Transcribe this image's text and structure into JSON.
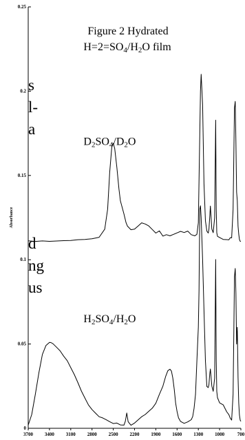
{
  "background_fragments": [
    {
      "id": "frag-1",
      "text": "s"
    },
    {
      "id": "frag-2",
      "text": "l-"
    },
    {
      "id": "frag-3",
      "text": "a"
    },
    {
      "id": "frag-4",
      "text": "d"
    },
    {
      "id": "frag-5",
      "text": "ng"
    },
    {
      "id": "frag-6",
      "text": "us"
    }
  ],
  "chart_data": {
    "type": "line",
    "title": "Figure 2  Hydrated",
    "subtitle_parts": [
      "H=2=SO",
      "4",
      "/H",
      "2",
      "O film"
    ],
    "xlabel": "",
    "ylabel": "Absorbance",
    "xlim": [
      3700,
      700
    ],
    "ylim": [
      0,
      0.25
    ],
    "x_ticks": [
      3700,
      3400,
      3100,
      2800,
      2500,
      2200,
      1900,
      1600,
      1300,
      1000,
      700
    ],
    "y_ticks": [
      0,
      0.05,
      0.1,
      0.15,
      0.2,
      0.25
    ],
    "y_tick_labels": [
      "0",
      "0.05",
      "0.1",
      "0.15",
      "0.2",
      "0.25"
    ],
    "annotations": [
      {
        "name": "d2so4-label",
        "parts": [
          "D",
          "2",
          "SO",
          "4",
          "/D",
          "2",
          "O"
        ],
        "x": 2550,
        "y": 0.168
      },
      {
        "name": "h2so4-label",
        "parts": [
          "H",
          "2",
          "SO",
          "4",
          "/H",
          "2",
          "O"
        ],
        "x": 2550,
        "y": 0.063
      }
    ],
    "series": [
      {
        "x": [
          3700,
          3600,
          3500,
          3400,
          3300,
          3200,
          3100,
          3000,
          2900,
          2800,
          2700,
          2620,
          2580,
          2550,
          2520,
          2500,
          2480,
          2450,
          2420,
          2400,
          2380,
          2350,
          2320,
          2300,
          2250,
          2200,
          2150,
          2100,
          2050,
          2000,
          1950,
          1900,
          1850,
          1800,
          1750,
          1700,
          1650,
          1600,
          1550,
          1500,
          1450,
          1400,
          1350,
          1320,
          1300,
          1280,
          1270,
          1260,
          1240,
          1220,
          1200,
          1180,
          1160,
          1150,
          1140,
          1130,
          1110,
          1090,
          1070,
          1055,
          1048,
          1040,
          1030,
          1000,
          950,
          900,
          870,
          850,
          830,
          810,
          800,
          790,
          780,
          770,
          760,
          750,
          740,
          730,
          720,
          710,
          700
        ],
        "y": [
          0.111,
          0.1108,
          0.1112,
          0.1111,
          0.111,
          0.1113,
          0.1115,
          0.1117,
          0.112,
          0.1125,
          0.1135,
          0.118,
          0.13,
          0.152,
          0.167,
          0.169,
          0.166,
          0.155,
          0.142,
          0.135,
          0.132,
          0.127,
          0.122,
          0.12,
          0.118,
          0.118,
          0.12,
          0.122,
          0.121,
          0.12,
          0.118,
          0.116,
          0.117,
          0.114,
          0.115,
          0.114,
          0.115,
          0.116,
          0.117,
          0.116,
          0.117,
          0.115,
          0.114,
          0.115,
          0.122,
          0.175,
          0.2,
          0.21,
          0.192,
          0.145,
          0.123,
          0.117,
          0.116,
          0.118,
          0.125,
          0.132,
          0.118,
          0.116,
          0.125,
          0.183,
          0.13,
          0.116,
          0.114,
          0.113,
          0.112,
          0.112,
          0.112,
          0.113,
          0.113,
          0.13,
          0.16,
          0.19,
          0.194,
          0.17,
          0.14,
          0.135,
          0.12,
          0.115,
          0.112,
          0.111,
          0.111
        ]
      },
      {
        "x": [
          3700,
          3650,
          3600,
          3550,
          3500,
          3450,
          3400,
          3380,
          3350,
          3300,
          3250,
          3200,
          3150,
          3100,
          3050,
          3000,
          2950,
          2900,
          2850,
          2800,
          2750,
          2700,
          2650,
          2600,
          2550,
          2500,
          2450,
          2400,
          2350,
          2330,
          2310,
          2290,
          2250,
          2200,
          2150,
          2100,
          2050,
          2000,
          1950,
          1900,
          1850,
          1800,
          1760,
          1730,
          1700,
          1680,
          1660,
          1640,
          1620,
          1600,
          1580,
          1550,
          1500,
          1450,
          1400,
          1380,
          1360,
          1340,
          1320,
          1300,
          1290,
          1280,
          1270,
          1260,
          1240,
          1220,
          1200,
          1180,
          1160,
          1150,
          1140,
          1130,
          1110,
          1090,
          1070,
          1055,
          1048,
          1040,
          1030,
          1000,
          950,
          900,
          870,
          850,
          830,
          810,
          800,
          790,
          780,
          770,
          760,
          750,
          740,
          730,
          720,
          710,
          700
        ],
        "y": [
          0.002,
          0.008,
          0.02,
          0.033,
          0.044,
          0.049,
          0.051,
          0.051,
          0.05,
          0.048,
          0.046,
          0.043,
          0.04,
          0.036,
          0.032,
          0.027,
          0.022,
          0.018,
          0.014,
          0.011,
          0.009,
          0.007,
          0.006,
          0.005,
          0.004,
          0.003,
          0.003,
          0.002,
          0.002,
          0.004,
          0.009,
          0.004,
          0.002,
          0.003,
          0.005,
          0.007,
          0.008,
          0.01,
          0.012,
          0.015,
          0.02,
          0.025,
          0.031,
          0.034,
          0.035,
          0.034,
          0.03,
          0.023,
          0.015,
          0.01,
          0.006,
          0.004,
          0.003,
          0.004,
          0.005,
          0.007,
          0.012,
          0.02,
          0.04,
          0.06,
          0.082,
          0.13,
          0.132,
          0.125,
          0.1,
          0.07,
          0.04,
          0.025,
          0.024,
          0.026,
          0.032,
          0.035,
          0.025,
          0.022,
          0.03,
          0.1,
          0.04,
          0.022,
          0.018,
          0.015,
          0.014,
          0.01,
          0.008,
          0.006,
          0.005,
          0.02,
          0.055,
          0.09,
          0.095,
          0.08,
          0.05,
          0.06,
          0.03,
          0.015,
          0.008,
          0.005,
          0.004
        ]
      }
    ]
  }
}
